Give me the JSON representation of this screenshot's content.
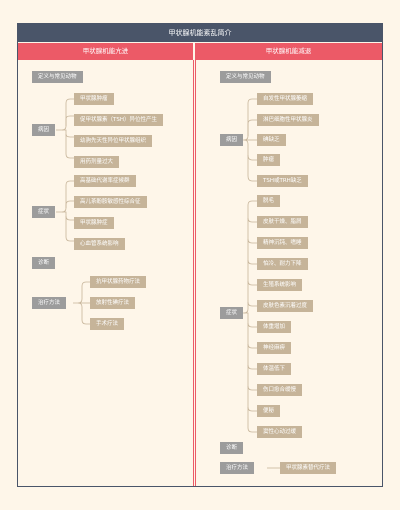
{
  "title": "甲状腺机能紊乱简介",
  "left": {
    "header": "甲状腺机能亢进",
    "sections": {
      "definition": "定义与常见动物",
      "etiology": {
        "label": "病因",
        "items": [
          "甲状腺肿瘤",
          "促甲状腺素（TSH）异位性产生",
          "幼驹先天性异位甲状腺组织",
          "用药剂量过大"
        ]
      },
      "symptoms": {
        "label": "症状",
        "items": [
          "高基础代谢率症候群",
          "高儿茶酚胺敏感性综合征",
          "甲状腺肿症",
          "心血管系统影响"
        ]
      },
      "diagnosis": "诊断",
      "treatment": {
        "label": "治疗方法",
        "items": [
          "抗甲状腺药物疗法",
          "放射性碘疗法",
          "手术疗法"
        ]
      }
    }
  },
  "right": {
    "header": "甲状腺机能减退",
    "sections": {
      "definition": "定义与常见动物",
      "etiology": {
        "label": "病因",
        "items": [
          "自发性甲状腺萎缩",
          "淋巴细胞性甲状腺炎",
          "碘缺乏",
          "肿瘤",
          "TSH或TRH缺乏"
        ]
      },
      "symptoms": {
        "label": "症状",
        "items": [
          "脱毛",
          "皮肤干燥、脂屑",
          "精神沉钝、嗜睡",
          "怕冷、耐力下降",
          "生殖系统影响",
          "皮肤色素沉着过度",
          "体重增加",
          "神经麻痹",
          "体温低下",
          "伤口愈合缓慢",
          "便秘",
          "窦性心动过缓"
        ]
      },
      "diagnosis": "诊断",
      "treatment": {
        "label": "治疗方法",
        "items": [
          "甲状腺素替代疗法"
        ]
      }
    }
  }
}
